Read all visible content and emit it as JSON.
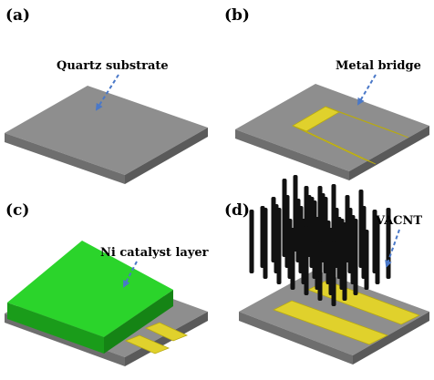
{
  "panels": {
    "a": {
      "letter": "(a)",
      "callout": "Quartz substrate"
    },
    "b": {
      "letter": "(b)",
      "callout": "Metal bridge"
    },
    "c": {
      "letter": "(c)",
      "callout": "Ni catalyst layer"
    },
    "d": {
      "letter": "(d)",
      "callout": "VACNT"
    }
  },
  "colors": {
    "substrate_top": "#8e8e8e",
    "substrate_side_front": "#6e6e6e",
    "substrate_side_right": "#5a5a5a",
    "metal_bridge": "#e0d12c",
    "metal_bridge_edge": "#b8aa10",
    "ni_catalyst_top": "#2bd42b",
    "ni_catalyst_side": "#1a9c1a",
    "vacnt": "#111111",
    "arrow": "#4a78c8"
  },
  "icons": {
    "callout_arrow": "dashed-arrow-icon"
  }
}
